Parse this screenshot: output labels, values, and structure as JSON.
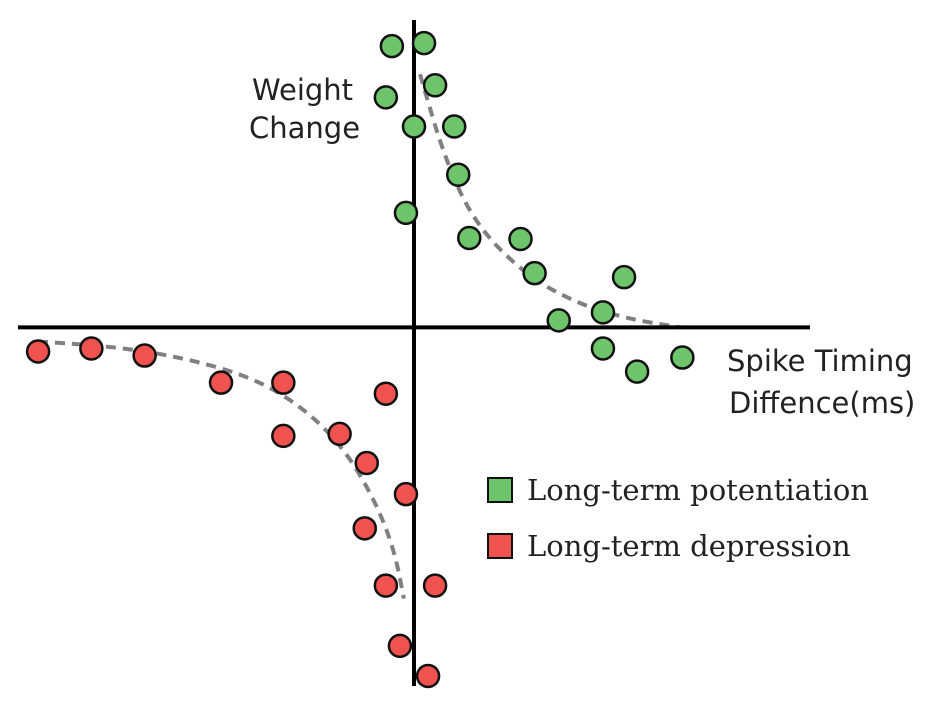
{
  "chart_data": {
    "type": "scatter",
    "ylabel": [
      "Weight",
      "Change"
    ],
    "xlabel": [
      "Spike Timing",
      "Diffence(ms)"
    ],
    "xlim": [
      -394,
      394
    ],
    "ylim": [
      -349,
      306
    ],
    "grid": false,
    "legend_placement": "lower-right",
    "series": [
      {
        "name": "Long-term potentiation",
        "color": "#6dc46a",
        "points": [
          [
            -22,
            280
          ],
          [
            10,
            283
          ],
          [
            -28,
            229
          ],
          [
            21,
            241
          ],
          [
            0,
            200
          ],
          [
            40,
            200
          ],
          [
            44,
            152
          ],
          [
            -8,
            114
          ],
          [
            55,
            89
          ],
          [
            106,
            88
          ],
          [
            120,
            54
          ],
          [
            209,
            50
          ],
          [
            144,
            7
          ],
          [
            188,
            15
          ],
          [
            188,
            -21
          ],
          [
            222,
            -44
          ],
          [
            267,
            -30
          ]
        ],
        "fit": [
          [
            6,
            252
          ],
          [
            30,
            170
          ],
          [
            60,
            104
          ],
          [
            110,
            53
          ],
          [
            160,
            25
          ],
          [
            210,
            9
          ],
          [
            265,
            0
          ]
        ]
      },
      {
        "name": "Long-term depression",
        "color": "#f0524f",
        "points": [
          [
            -374,
            -24
          ],
          [
            -321,
            -21
          ],
          [
            -268,
            -28
          ],
          [
            -192,
            -55
          ],
          [
            -130,
            -55
          ],
          [
            -28,
            -66
          ],
          [
            -130,
            -108
          ],
          [
            -74,
            -106
          ],
          [
            -47,
            -135
          ],
          [
            -8,
            -166
          ],
          [
            -49,
            -200
          ],
          [
            -28,
            -257
          ],
          [
            21,
            -257
          ],
          [
            -14,
            -317
          ],
          [
            14,
            -347
          ]
        ],
        "fit": [
          [
            -374,
            -14
          ],
          [
            -300,
            -19
          ],
          [
            -230,
            -30
          ],
          [
            -160,
            -50
          ],
          [
            -110,
            -80
          ],
          [
            -70,
            -120
          ],
          [
            -40,
            -170
          ],
          [
            -20,
            -220
          ],
          [
            -10,
            -270
          ]
        ]
      }
    ]
  },
  "legend": {
    "items": [
      {
        "label": "Long-term potentiation",
        "color": "#6dc46a"
      },
      {
        "label": "Long-term depression",
        "color": "#f0524f"
      }
    ]
  }
}
